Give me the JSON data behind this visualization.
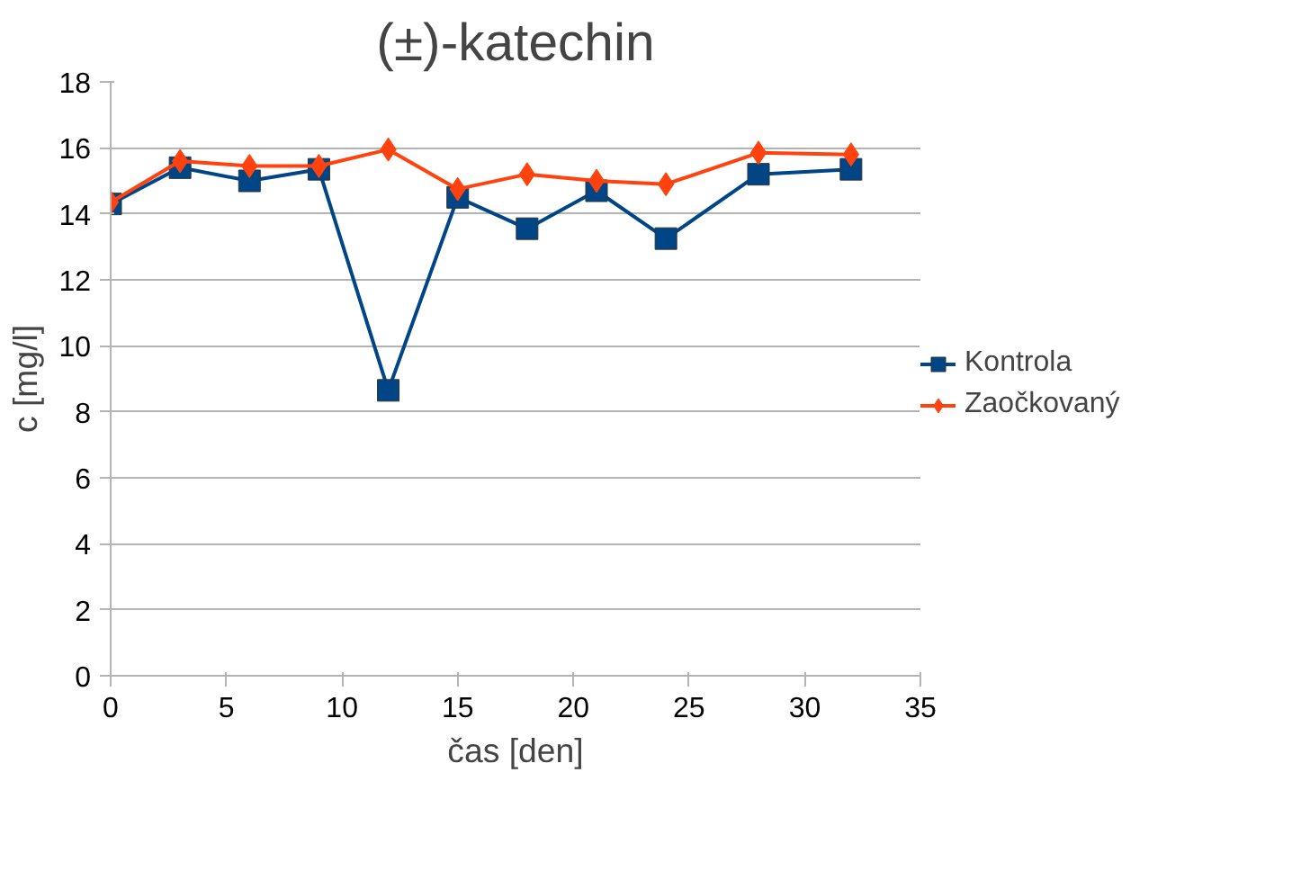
{
  "chart_data": {
    "type": "line",
    "title": "(±)-katechin",
    "xlabel": "čas [den]",
    "ylabel": "c [mg/l]",
    "x": [
      0,
      3,
      6,
      9,
      12,
      15,
      18,
      21,
      24,
      28,
      32
    ],
    "series": [
      {
        "name": "Kontrola",
        "color": "#004586",
        "marker": "square",
        "values": [
          14.3,
          15.4,
          15.0,
          15.35,
          8.65,
          14.5,
          13.55,
          14.7,
          13.25,
          15.2,
          15.35
        ]
      },
      {
        "name": "Zaočkovaný",
        "color": "#ff420e",
        "marker": "diamond",
        "values": [
          14.35,
          15.6,
          15.45,
          15.45,
          15.95,
          14.75,
          15.2,
          15.0,
          14.9,
          15.85,
          15.8
        ]
      }
    ],
    "xlim": [
      0,
      35
    ],
    "xticks": [
      0,
      5,
      10,
      15,
      20,
      25,
      30,
      35
    ],
    "ylim": [
      0,
      18
    ],
    "yticks": [
      0,
      2,
      4,
      6,
      8,
      10,
      12,
      14,
      16,
      18
    ],
    "grid": "y",
    "legend": "right",
    "line_style": "solid"
  }
}
